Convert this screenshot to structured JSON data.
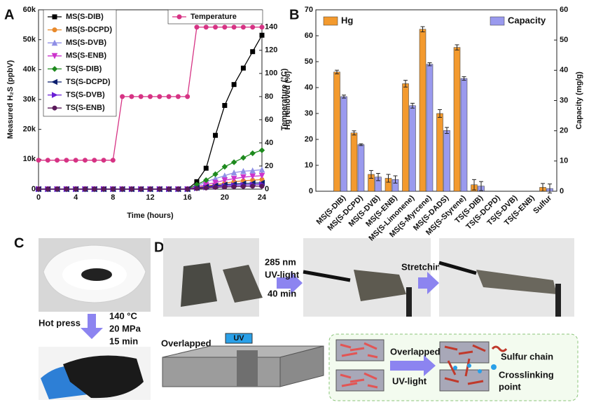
{
  "panel_labels": [
    "A",
    "B",
    "C",
    "D"
  ],
  "panel_c": {
    "step": "Hot press",
    "conditions": [
      "140 °C",
      "20 MPa",
      "15 min"
    ]
  },
  "panel_d": {
    "uv_conditions": [
      "285 nm",
      "UV-light",
      "40 min"
    ],
    "stretch": "Stretching",
    "overlapped": "Overlapped",
    "uv_lamp": "UV",
    "schematic_step": [
      "Overlapped",
      "UV-light"
    ],
    "legend": {
      "sulfur_chain": "Sulfur chain",
      "crosslinking": [
        "Crosslinking",
        "point"
      ]
    }
  },
  "chart_data": [
    {
      "type": "line",
      "xlabel": "Time (hours)",
      "ylabel": "Measured H₂S (ppbV)",
      "y2label": "Temperature (°C)",
      "xlim": [
        0,
        24
      ],
      "xticks": [
        0,
        4,
        8,
        12,
        16,
        20,
        24
      ],
      "ylim": [
        0,
        60000
      ],
      "yticks": [
        0,
        {
          "value": 10000,
          "label": "10k"
        },
        {
          "value": 20000,
          "label": "20k"
        },
        {
          "value": 30000,
          "label": "30k"
        },
        {
          "value": 40000,
          "label": "40k"
        },
        {
          "value": 50000,
          "label": "50k"
        },
        {
          "value": 60000,
          "label": "60k"
        }
      ],
      "y2lim": [
        0,
        155
      ],
      "y2ticks": [
        0,
        20,
        40,
        60,
        80,
        100,
        120,
        140
      ],
      "x": [
        0,
        1,
        2,
        3,
        4,
        5,
        6,
        7,
        8,
        9,
        10,
        11,
        12,
        13,
        14,
        15,
        16,
        17,
        18,
        19,
        20,
        21,
        22,
        23,
        24
      ],
      "series": [
        {
          "name": "MS(S-DIB)",
          "color": "#000000",
          "marker": "square",
          "values": [
            0,
            0,
            0,
            0,
            0,
            0,
            0,
            0,
            0,
            0,
            0,
            0,
            0,
            0,
            0,
            0,
            0,
            2500,
            7000,
            18000,
            28000,
            35000,
            40500,
            46000,
            51500
          ]
        },
        {
          "name": "MS(S-DCPD)",
          "color": "#e8892b",
          "marker": "circle",
          "values": [
            0,
            0,
            0,
            0,
            0,
            0,
            0,
            0,
            0,
            0,
            0,
            0,
            0,
            0,
            0,
            0,
            0,
            500,
            1000,
            1500,
            2000,
            2500,
            2800,
            3000,
            3200
          ]
        },
        {
          "name": "MS(S-DVB)",
          "color": "#8f8fe6",
          "marker": "triangle-up",
          "values": [
            0,
            0,
            0,
            0,
            0,
            0,
            0,
            0,
            0,
            0,
            0,
            0,
            0,
            0,
            0,
            0,
            0,
            1000,
            2500,
            3500,
            4500,
            5500,
            6000,
            6200,
            6500
          ]
        },
        {
          "name": "MS(S-ENB)",
          "color": "#cc33cc",
          "marker": "triangle-down",
          "values": [
            0,
            0,
            0,
            0,
            0,
            0,
            0,
            0,
            0,
            0,
            0,
            0,
            0,
            0,
            0,
            0,
            0,
            800,
            1500,
            2200,
            3000,
            3500,
            4000,
            4300,
            4500
          ]
        },
        {
          "name": "TS(S-DIB)",
          "color": "#1e8a1e",
          "marker": "diamond",
          "values": [
            0,
            0,
            0,
            0,
            0,
            0,
            0,
            0,
            0,
            0,
            0,
            0,
            0,
            0,
            0,
            0,
            0,
            1500,
            3000,
            5000,
            7500,
            9000,
            10500,
            12000,
            13000
          ]
        },
        {
          "name": "TS(S-DCPD)",
          "color": "#0b1f6e",
          "marker": "triangle-left",
          "values": [
            0,
            0,
            0,
            0,
            0,
            0,
            0,
            0,
            0,
            0,
            0,
            0,
            0,
            0,
            0,
            0,
            0,
            400,
            800,
            1200,
            1500,
            1700,
            1900,
            2000,
            2100
          ]
        },
        {
          "name": "TS(S-DVB)",
          "color": "#6a1fd6",
          "marker": "triangle-right",
          "values": [
            0,
            0,
            0,
            0,
            0,
            0,
            0,
            0,
            0,
            0,
            0,
            0,
            0,
            0,
            0,
            0,
            0,
            300,
            600,
            900,
            1100,
            1300,
            1400,
            1500,
            1600
          ]
        },
        {
          "name": "TS(S-ENB)",
          "color": "#5a1a5a",
          "marker": "circle",
          "values": [
            0,
            0,
            0,
            0,
            0,
            0,
            0,
            0,
            0,
            0,
            0,
            0,
            0,
            0,
            0,
            0,
            0,
            200,
            400,
            600,
            700,
            800,
            900,
            1000,
            1000
          ]
        },
        {
          "name": "Temperature",
          "color": "#d63384",
          "marker": "circle",
          "axis": "y2",
          "values": [
            25,
            25,
            25,
            25,
            25,
            25,
            25,
            25,
            25,
            80,
            80,
            80,
            80,
            80,
            80,
            80,
            80,
            140,
            140,
            140,
            140,
            140,
            140,
            140,
            140
          ]
        }
      ]
    },
    {
      "type": "bar",
      "ylabel": "Hg removed (%)",
      "y2label": "Capacity (mg/g)",
      "categories": [
        "MS(S-DIB)",
        "MS(S-DCPD)",
        "MS(S-DVB)",
        "MS(S-ENB)",
        "MS(S-Limonene)",
        "MS(S-Myrcene)",
        "MS(S-DADS)",
        "MS(S-Styrene)",
        "TS(S-DIB)",
        "TS(S-DCPD)",
        "TS(S-DVB)",
        "TS(S-ENB)",
        "Sulfur"
      ],
      "ylim": [
        0,
        70
      ],
      "yticks": [
        0,
        10,
        20,
        30,
        40,
        50,
        60,
        70
      ],
      "y2lim": [
        0,
        60
      ],
      "y2ticks": [
        0,
        10,
        20,
        30,
        40,
        50,
        60
      ],
      "series": [
        {
          "name": "Hg",
          "color": "#f39a2e",
          "values": [
            46,
            22.5,
            6.5,
            5,
            41.5,
            62.5,
            30,
            55.5,
            2.5,
            0,
            0,
            0,
            1.5
          ],
          "errors": [
            0.7,
            0.8,
            1.5,
            1.5,
            1.3,
            1,
            1.5,
            1,
            2,
            0,
            0,
            0,
            1.5
          ]
        },
        {
          "name": "Capacity",
          "color": "#9a9aee",
          "axis": "y2",
          "values": [
            31.3,
            15.4,
            4.7,
            3.9,
            28.3,
            42,
            20.1,
            37.3,
            1.7,
            0,
            0,
            0,
            0.9
          ],
          "errors": [
            0.5,
            0.3,
            1.2,
            1.2,
            0.8,
            0.5,
            1,
            0.6,
            1.5,
            0,
            0,
            0,
            1.5
          ]
        }
      ]
    }
  ]
}
